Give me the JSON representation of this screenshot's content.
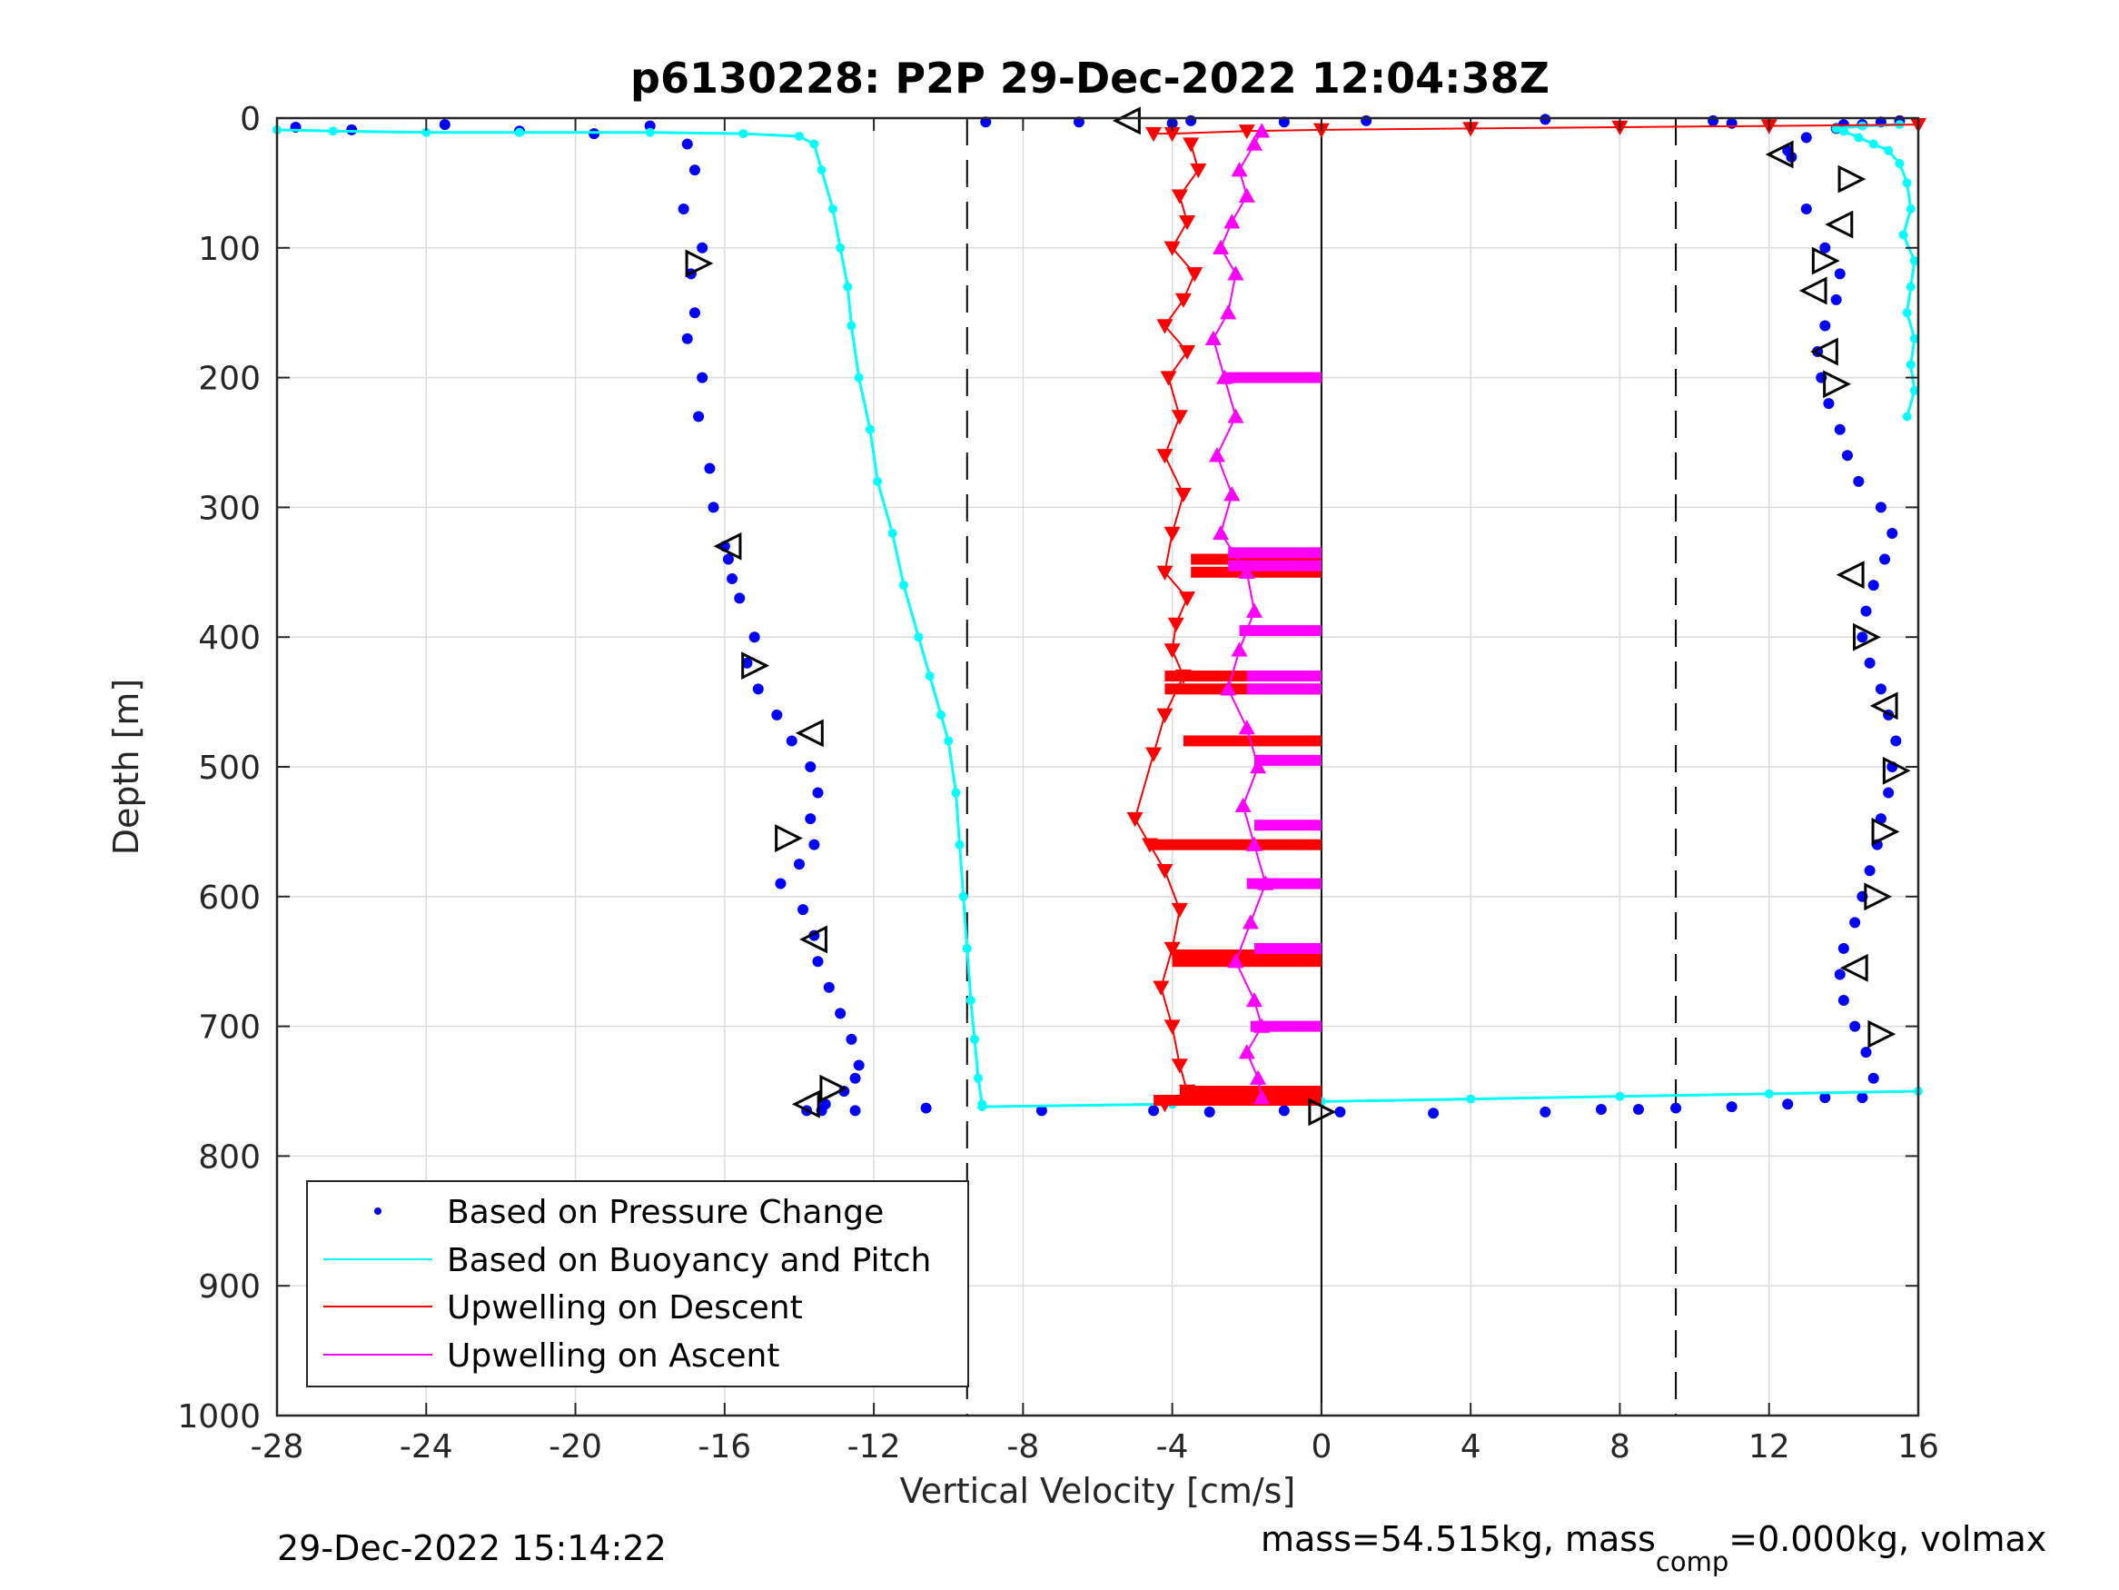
{
  "chart_data": {
    "type": "scatter",
    "title": "p6130228: P2P 29-Dec-2022 12:04:38Z",
    "xlabel": "Vertical Velocity [cm/s]",
    "ylabel": "Depth [m]",
    "xlim": [
      -28,
      16
    ],
    "ylim": [
      1000,
      0
    ],
    "y_reversed": true,
    "xticks": [
      "-28",
      "-24",
      "-20",
      "-16",
      "-12",
      "-8",
      "-4",
      "0",
      "4",
      "8",
      "12",
      "16"
    ],
    "yticks": [
      "0",
      "100",
      "200",
      "300",
      "400",
      "500",
      "600",
      "700",
      "800",
      "900",
      "1000"
    ],
    "grid": true,
    "reference_lines": [
      {
        "x": -9.5,
        "style": "dashed"
      },
      {
        "x": 9.5,
        "style": "dashed"
      },
      {
        "x": 0,
        "style": "solid"
      }
    ],
    "legend_position": "bottom-left",
    "legend": [
      {
        "label": "Based on Pressure Change",
        "marker": "dot",
        "color": "#0000ff"
      },
      {
        "label": "Based on Buoyancy and Pitch",
        "marker": "line",
        "color": "#00ffff"
      },
      {
        "label": "Upwelling on Descent",
        "marker": "line",
        "color": "#ff0000"
      },
      {
        "label": "Upwelling on Ascent",
        "marker": "line",
        "color": "#ff00ff"
      }
    ],
    "series": [
      {
        "name": "Based on Pressure Change",
        "color": "#0000ff",
        "marker": "dot",
        "segments": [
          {
            "x": [
              -27.5,
              -26,
              -23.5,
              -21.5,
              -19.5,
              -18,
              -17,
              -16.8,
              -17.1,
              -16.6,
              -16.9,
              -16.8,
              -17.0,
              -16.6,
              -16.7,
              -16.4,
              -16.3,
              -16.0,
              -15.9,
              -15.8,
              -15.6,
              -15.2,
              -15.4,
              -15.1,
              -14.6,
              -14.2,
              -13.7,
              -13.5,
              -13.7,
              -13.6,
              -14.0,
              -14.5,
              -13.9,
              -13.6,
              -13.5,
              -13.2,
              -12.9,
              -12.6,
              -12.4,
              -12.5,
              -12.8,
              -13.3,
              -13.8
            ],
            "y": [
              7,
              9,
              5,
              10,
              12,
              6,
              20,
              40,
              70,
              100,
              120,
              150,
              170,
              200,
              230,
              270,
              300,
              330,
              340,
              355,
              370,
              400,
              420,
              440,
              460,
              480,
              500,
              520,
              540,
              560,
              575,
              590,
              610,
              630,
              650,
              670,
              690,
              710,
              730,
              740,
              750,
              760,
              765
            ]
          },
          {
            "x": [
              -13.4,
              -12.5,
              -10.6,
              -7.5,
              -4.5,
              -3.0,
              -1.0,
              0.5,
              3.0,
              6.0,
              7.5,
              8.5,
              9.5,
              11.0,
              12.5,
              13.5
            ],
            "y": [
              765,
              765,
              763,
              765,
              765,
              766,
              765,
              766,
              767,
              766,
              764,
              764,
              763,
              762,
              760,
              755
            ]
          },
          {
            "x": [
              14.5,
              14.8,
              14.6,
              14.3,
              14.0,
              13.9,
              14.0,
              14.3,
              14.5,
              14.7,
              14.9,
              15.0,
              15.2,
              15.3,
              15.4,
              15.2,
              15.0,
              14.7,
              14.5,
              14.6,
              14.8,
              15.1,
              15.3,
              15.0,
              14.4,
              14.1,
              13.9,
              13.6,
              13.4,
              13.3,
              13.5,
              13.8,
              13.9,
              13.5,
              13.0,
              12.6
            ],
            "y": [
              755,
              740,
              720,
              700,
              680,
              660,
              640,
              620,
              600,
              580,
              560,
              540,
              520,
              500,
              480,
              460,
              440,
              420,
              400,
              380,
              360,
              340,
              320,
              300,
              280,
              260,
              240,
              220,
              200,
              180,
              160,
              140,
              120,
              100,
              70,
              30
            ]
          },
          {
            "x": [
              12.5,
              13.0,
              13.8,
              14.5,
              15.0,
              15.5,
              14.0,
              11.0,
              10.5,
              6.0,
              1.2,
              -1.0,
              -3.5,
              -4.0,
              -6.5,
              -9.0
            ],
            "y": [
              25,
              15,
              8,
              5,
              3,
              2,
              5,
              4,
              2,
              1,
              2,
              3,
              2,
              4,
              3,
              3
            ]
          }
        ]
      },
      {
        "name": "Based on Buoyancy and Pitch",
        "color": "#00ffff",
        "marker": "line-dots",
        "segments": [
          {
            "x": [
              -28,
              -26.5,
              -24,
              -21.5,
              -18.0,
              -15.5,
              -14.0,
              -13.6,
              -13.4,
              -13.1,
              -12.9,
              -12.7,
              -12.6,
              -12.4,
              -12.1,
              -11.9,
              -11.5,
              -11.2,
              -10.8,
              -10.5,
              -10.2,
              -10.0,
              -9.8,
              -9.7,
              -9.6,
              -9.5,
              -9.4,
              -9.3,
              -9.2,
              -9.1
            ],
            "y": [
              9,
              10,
              11,
              11,
              11,
              12,
              14,
              20,
              40,
              70,
              100,
              130,
              160,
              200,
              240,
              280,
              320,
              360,
              400,
              430,
              460,
              480,
              520,
              560,
              600,
              640,
              680,
              710,
              740,
              760
            ]
          },
          {
            "x": [
              -9.1,
              -4,
              0,
              4,
              8,
              12,
              16
            ],
            "y": [
              762,
              760,
              758,
              756,
              754,
              752,
              750
            ]
          },
          {
            "x": [
              15.7,
              15.9,
              15.8,
              15.9,
              15.7,
              15.8,
              15.9,
              15.6,
              15.8,
              15.7,
              15.5,
              15.2,
              14.8,
              14.4,
              14.0,
              13.8,
              14.5,
              15.5
            ],
            "y": [
              230,
              210,
              190,
              170,
              150,
              130,
              110,
              90,
              70,
              50,
              35,
              25,
              20,
              15,
              10,
              8,
              6,
              5
            ]
          }
        ]
      },
      {
        "name": "Upwelling on Descent",
        "color": "#ff0000",
        "marker": "triangle-down",
        "segments": [
          {
            "x": [
              16,
              12,
              8,
              4,
              0,
              -2,
              -4,
              -4.5
            ],
            "y": [
              5,
              6,
              7,
              8,
              9,
              10,
              12,
              12
            ]
          },
          {
            "x": [
              -3.5,
              -3.3,
              -3.8,
              -3.6,
              -4.0,
              -3.4,
              -3.7,
              -4.2,
              -3.6,
              -4.1,
              -3.8,
              -4.2,
              -3.7,
              -4.0,
              -4.2,
              -3.6,
              -3.9,
              -4.0,
              -3.7,
              -4.2,
              -4.5,
              -5.0,
              -4.6,
              -4.2,
              -3.8,
              -4.0,
              -4.3,
              -4.0,
              -3.8,
              -3.6,
              -4.2
            ],
            "y": [
              20,
              40,
              60,
              80,
              100,
              120,
              140,
              160,
              180,
              200,
              230,
              260,
              290,
              320,
              350,
              370,
              390,
              410,
              430,
              460,
              490,
              540,
              560,
              580,
              610,
              640,
              670,
              700,
              730,
              750,
              760
            ]
          }
        ],
        "bars": [
          {
            "y": 340,
            "x0": -3.5,
            "x1": 0
          },
          {
            "y": 350,
            "x0": -3.5,
            "x1": 0
          },
          {
            "y": 430,
            "x0": -4.2,
            "x1": 0
          },
          {
            "y": 440,
            "x0": -4.2,
            "x1": 0
          },
          {
            "y": 480,
            "x0": -3.7,
            "x1": 0
          },
          {
            "y": 560,
            "x0": -4.6,
            "x1": 0
          },
          {
            "y": 645,
            "x0": -4.0,
            "x1": 0
          },
          {
            "y": 650,
            "x0": -4.0,
            "x1": 0
          },
          {
            "y": 750,
            "x0": -3.8,
            "x1": 0
          },
          {
            "y": 757,
            "x0": -4.5,
            "x1": 0
          }
        ]
      },
      {
        "name": "Upwelling on Ascent",
        "color": "#ff00ff",
        "marker": "triangle-up",
        "segments": [
          {
            "x": [
              -1.6,
              -1.8,
              -2.2,
              -2.0,
              -2.4,
              -2.7,
              -2.3,
              -2.5,
              -2.9,
              -2.6,
              -2.3,
              -2.8,
              -2.4,
              -2.7,
              -2.0,
              -1.8,
              -2.2,
              -2.5,
              -2.0,
              -1.7,
              -2.1,
              -1.8,
              -1.5,
              -1.9,
              -2.3,
              -1.8,
              -1.6,
              -2.0,
              -1.7,
              -1.6
            ],
            "y": [
              10,
              20,
              40,
              60,
              80,
              100,
              120,
              150,
              170,
              200,
              230,
              260,
              290,
              320,
              350,
              380,
              410,
              440,
              470,
              500,
              530,
              560,
              590,
              620,
              650,
              680,
              700,
              720,
              740,
              755
            ]
          }
        ],
        "bars": [
          {
            "y": 200,
            "x0": -2.6,
            "x1": 0
          },
          {
            "y": 335,
            "x0": -2.5,
            "x1": 0
          },
          {
            "y": 345,
            "x0": -2.5,
            "x1": 0
          },
          {
            "y": 395,
            "x0": -2.2,
            "x1": 0
          },
          {
            "y": 430,
            "x0": -2.0,
            "x1": 0
          },
          {
            "y": 440,
            "x0": -2.0,
            "x1": 0
          },
          {
            "y": 495,
            "x0": -1.8,
            "x1": 0
          },
          {
            "y": 545,
            "x0": -1.8,
            "x1": 0
          },
          {
            "y": 590,
            "x0": -2.0,
            "x1": 0
          },
          {
            "y": 640,
            "x0": -1.8,
            "x1": 0
          },
          {
            "y": 700,
            "x0": -1.9,
            "x1": 0
          }
        ]
      }
    ],
    "turn_markers": [
      {
        "x": -5.2,
        "y": 2,
        "dir": "left"
      },
      {
        "x": -16.7,
        "y": 112,
        "dir": "right"
      },
      {
        "x": -15.9,
        "y": 330,
        "dir": "left"
      },
      {
        "x": -15.2,
        "y": 422,
        "dir": "right"
      },
      {
        "x": -13.7,
        "y": 474,
        "dir": "left"
      },
      {
        "x": -14.3,
        "y": 555,
        "dir": "right"
      },
      {
        "x": -13.6,
        "y": 633,
        "dir": "left"
      },
      {
        "x": -13.1,
        "y": 748,
        "dir": "right"
      },
      {
        "x": -13.8,
        "y": 760,
        "dir": "left"
      },
      {
        "x": 0.0,
        "y": 766,
        "dir": "right"
      },
      {
        "x": 12.3,
        "y": 28,
        "dir": "left"
      },
      {
        "x": 14.2,
        "y": 47,
        "dir": "right"
      },
      {
        "x": 13.9,
        "y": 82,
        "dir": "left"
      },
      {
        "x": 13.5,
        "y": 110,
        "dir": "right"
      },
      {
        "x": 13.2,
        "y": 133,
        "dir": "left"
      },
      {
        "x": 13.5,
        "y": 180,
        "dir": "left"
      },
      {
        "x": 13.8,
        "y": 205,
        "dir": "right"
      },
      {
        "x": 14.2,
        "y": 352,
        "dir": "left"
      },
      {
        "x": 14.6,
        "y": 400,
        "dir": "right"
      },
      {
        "x": 15.1,
        "y": 453,
        "dir": "left"
      },
      {
        "x": 15.4,
        "y": 503,
        "dir": "right"
      },
      {
        "x": 15.1,
        "y": 550,
        "dir": "right"
      },
      {
        "x": 14.9,
        "y": 600,
        "dir": "right"
      },
      {
        "x": 14.3,
        "y": 655,
        "dir": "left"
      },
      {
        "x": 15.0,
        "y": 706,
        "dir": "right"
      }
    ]
  },
  "footer": {
    "timestamp": "29-Dec-2022 15:14:22",
    "mass_text_a": "mass=54.515kg, mass",
    "mass_text_sub": "comp",
    "mass_text_b": "=0.000kg, volmax"
  }
}
